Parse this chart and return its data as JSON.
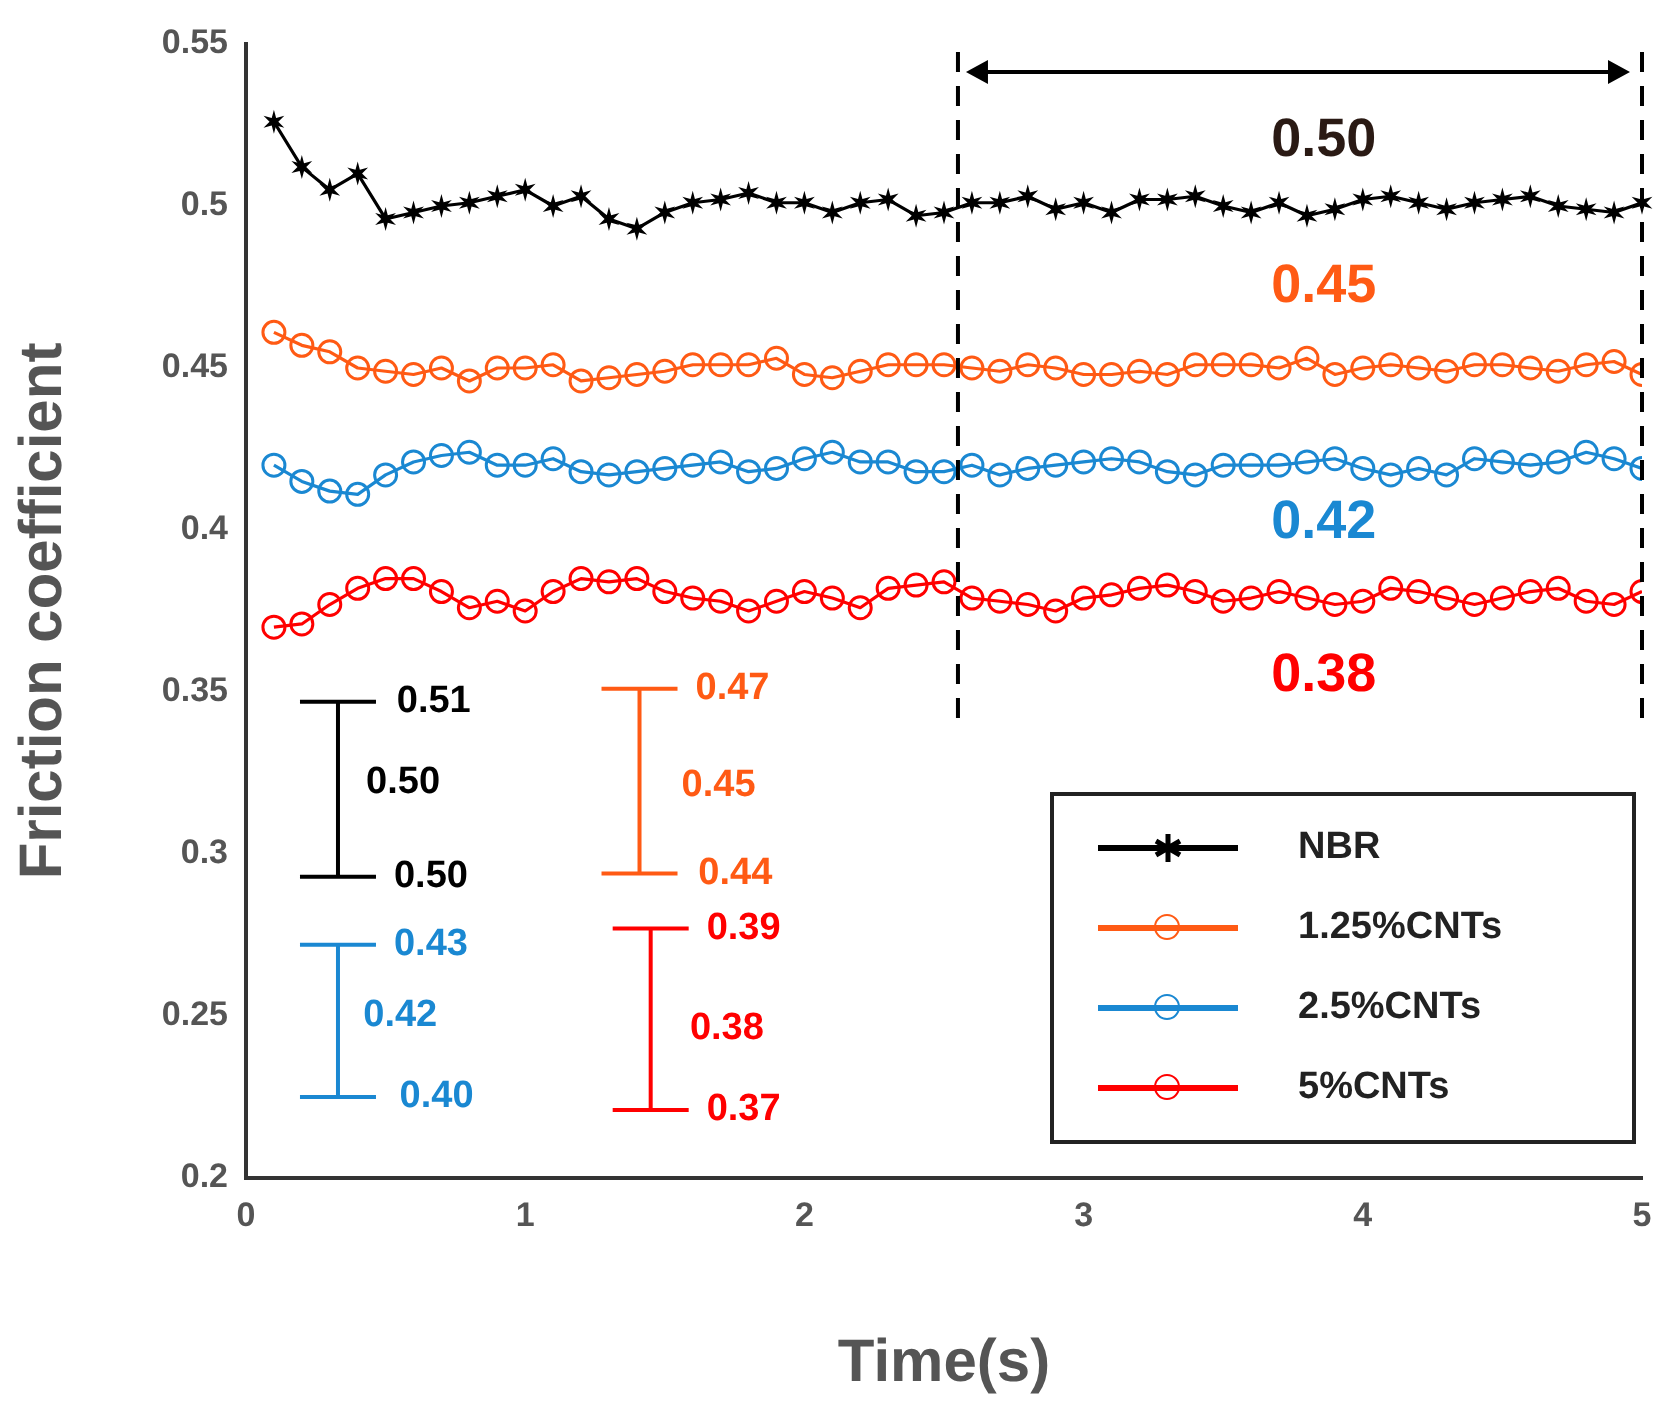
{
  "chart_data": {
    "type": "line",
    "xlabel": "Time(s)",
    "ylabel": "Friction coefficient",
    "x": [
      0.1,
      0.2,
      0.3,
      0.4,
      0.5,
      0.6,
      0.7,
      0.8,
      0.9,
      1.0,
      1.1,
      1.2,
      1.3,
      1.4,
      1.5,
      1.6,
      1.7,
      1.8,
      1.9,
      2.0,
      2.1,
      2.2,
      2.3,
      2.4,
      2.5,
      2.6,
      2.7,
      2.8,
      2.9,
      3.0,
      3.1,
      3.2,
      3.3,
      3.4,
      3.5,
      3.6,
      3.7,
      3.8,
      3.9,
      4.0,
      4.1,
      4.2,
      4.3,
      4.4,
      4.5,
      4.6,
      4.7,
      4.8,
      4.9,
      5.0
    ],
    "series": [
      {
        "name": "NBR",
        "color": "#000000",
        "marker": "cross",
        "values": [
          0.526,
          0.512,
          0.505,
          0.51,
          0.496,
          0.498,
          0.5,
          0.501,
          0.503,
          0.505,
          0.5,
          0.503,
          0.496,
          0.493,
          0.498,
          0.501,
          0.502,
          0.504,
          0.501,
          0.501,
          0.498,
          0.501,
          0.502,
          0.497,
          0.498,
          0.501,
          0.501,
          0.503,
          0.499,
          0.501,
          0.498,
          0.502,
          0.502,
          0.503,
          0.5,
          0.498,
          0.501,
          0.497,
          0.499,
          0.502,
          0.503,
          0.501,
          0.499,
          0.501,
          0.502,
          0.503,
          0.5,
          0.499,
          0.498,
          0.501
        ]
      },
      {
        "name": "1.25%CNTs",
        "color": "#ff5a14",
        "marker": "circle",
        "values": [
          0.461,
          0.457,
          0.455,
          0.45,
          0.449,
          0.448,
          0.45,
          0.446,
          0.45,
          0.45,
          0.451,
          0.446,
          0.447,
          0.448,
          0.449,
          0.451,
          0.451,
          0.451,
          0.453,
          0.448,
          0.447,
          0.449,
          0.451,
          0.451,
          0.451,
          0.45,
          0.449,
          0.451,
          0.45,
          0.448,
          0.448,
          0.449,
          0.448,
          0.451,
          0.451,
          0.451,
          0.45,
          0.453,
          0.448,
          0.45,
          0.451,
          0.45,
          0.449,
          0.451,
          0.451,
          0.45,
          0.449,
          0.451,
          0.452,
          0.448
        ]
      },
      {
        "name": "2.5%CNTs",
        "color": "#1a88d2",
        "marker": "circle",
        "values": [
          0.42,
          0.415,
          0.412,
          0.411,
          0.417,
          0.421,
          0.423,
          0.424,
          0.42,
          0.42,
          0.422,
          0.418,
          0.417,
          0.418,
          0.419,
          0.42,
          0.421,
          0.418,
          0.419,
          0.422,
          0.424,
          0.421,
          0.421,
          0.418,
          0.418,
          0.42,
          0.417,
          0.419,
          0.42,
          0.421,
          0.422,
          0.421,
          0.418,
          0.417,
          0.42,
          0.42,
          0.42,
          0.421,
          0.422,
          0.419,
          0.417,
          0.419,
          0.417,
          0.422,
          0.421,
          0.42,
          0.421,
          0.424,
          0.422,
          0.419
        ]
      },
      {
        "name": "5%CNTs",
        "color": "#ff0000",
        "marker": "circle",
        "values": [
          0.37,
          0.371,
          0.377,
          0.382,
          0.385,
          0.385,
          0.381,
          0.376,
          0.378,
          0.375,
          0.381,
          0.385,
          0.384,
          0.385,
          0.381,
          0.379,
          0.378,
          0.375,
          0.378,
          0.381,
          0.379,
          0.376,
          0.382,
          0.383,
          0.384,
          0.379,
          0.378,
          0.377,
          0.375,
          0.379,
          0.38,
          0.382,
          0.383,
          0.381,
          0.378,
          0.379,
          0.381,
          0.379,
          0.377,
          0.378,
          0.382,
          0.381,
          0.379,
          0.377,
          0.379,
          0.381,
          0.382,
          0.378,
          0.377,
          0.381
        ]
      }
    ],
    "xlim": [
      0,
      5
    ],
    "xticks": [
      0,
      1,
      2,
      3,
      4,
      5
    ],
    "ylim": [
      0.2,
      0.55
    ],
    "yticks": [
      0.2,
      0.25,
      0.3,
      0.35,
      0.4,
      0.45,
      0.5,
      0.55
    ],
    "grid": false,
    "legend": "bottom right",
    "line_style": "solid",
    "ref_lines": [
      {
        "axis": "x",
        "value": 2.55,
        "color": "#000000",
        "line_style": "dashed"
      },
      {
        "axis": "x",
        "value": 5,
        "color": "#000000",
        "line_style": "dashed"
      }
    ],
    "annotations": [
      "0.50",
      "0.45",
      "0.42",
      "0.38",
      "0.51",
      "0.50",
      "0.50",
      "0.47",
      "0.45",
      "0.44",
      "0.43",
      "0.42",
      "0.40",
      "0.39",
      "0.38",
      "0.37"
    ]
  }
}
